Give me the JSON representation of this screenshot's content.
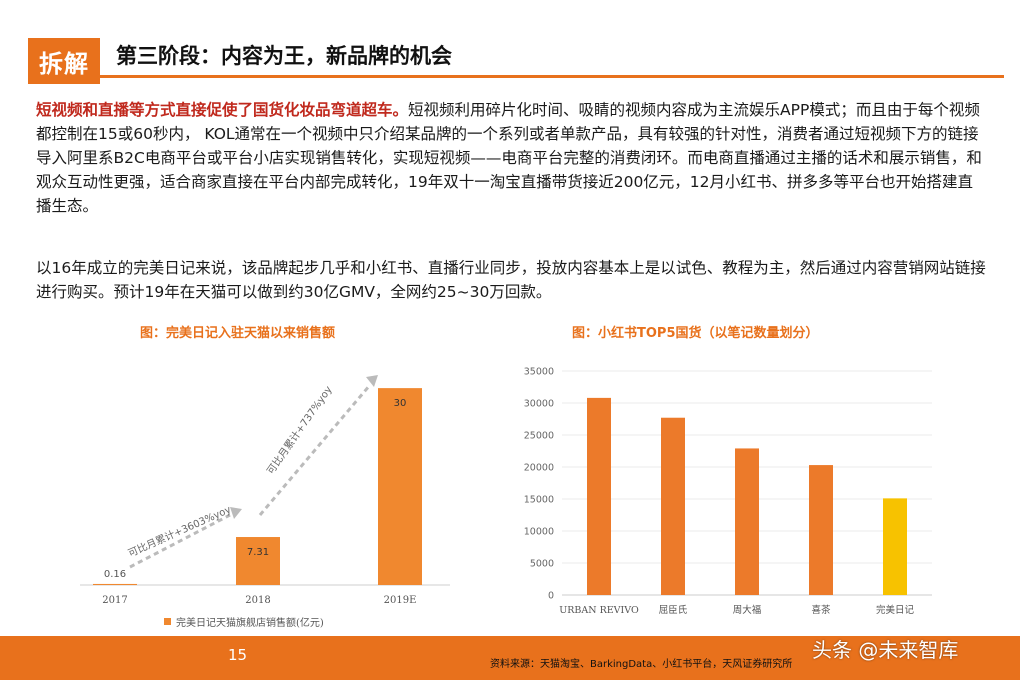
{
  "header": {
    "badge": "拆解",
    "title": "第三阶段：内容为王，新品牌的机会"
  },
  "body": {
    "para1_lead": "短视频和直播等方式直接促使了国货化妆品弯道超车。",
    "para1_text": "短视频利用碎片化时间、吸睛的视频内容成为主流娱乐APP模式；而且由于每个视频都控制在15或60秒内， KOL通常在一个视频中只介绍某品牌的一个系列或者单款产品，具有较强的针对性，消费者通过短视频下方的链接导入阿里系B2C电商平台或平台小店实现销售转化，实现短视频——电商平台完整的消费闭环。而电商直播通过主播的话术和展示销售，和观众互动性更强，适合商家直接在平台内部完成转化，19年双十一淘宝直播带货接近200亿元，12月小红书、拼多多等平台也开始搭建直播生态。",
    "para2_text": "以16年成立的完美日记来说，该品牌起步几乎和小红书、直播行业同步，投放内容基本上是以试色、教程为主，然后通过内容营销网站链接进行购买。预计19年在天猫可以做到约30亿GMV，全网约25~30万回款。"
  },
  "chart_data": [
    {
      "type": "bar",
      "title": "图：完美日记入驻天猫以来销售额",
      "categories": [
        "2017",
        "2018",
        "2019E"
      ],
      "values": [
        0.16,
        7.31,
        30
      ],
      "data_labels": [
        "0.16",
        "7.31",
        "30"
      ],
      "legend": "完美日记天猫旗舰店销售额(亿元)",
      "annotations": [
        "可比月累计+3603%yoy",
        "可比月累计+737%yoy"
      ],
      "ylim": [
        0,
        32
      ],
      "grid": false,
      "bar_color": "#f0882f"
    },
    {
      "type": "bar",
      "title": "图：小红书TOP5国货（以笔记数量划分）",
      "categories": [
        "URBAN REVIVO",
        "屈臣氏",
        "周大福",
        "喜茶",
        "完美日记"
      ],
      "values": [
        30800,
        27700,
        22900,
        20300,
        15100
      ],
      "ylim": [
        0,
        35000
      ],
      "yticks": [
        "0",
        "5000",
        "10000",
        "15000",
        "20000",
        "25000",
        "30000",
        "35000"
      ],
      "grid": true,
      "bar_colors": [
        "#ec7a2a",
        "#ec7a2a",
        "#ec7a2a",
        "#ec7a2a",
        "#f7c200"
      ]
    }
  ],
  "footer": {
    "page_number": "15",
    "source": "资料来源：天猫淘宝、BarkingData、小红书平台，天风证券研究所",
    "watermark": "头条 @未来智库"
  },
  "colors": {
    "accent": "#e8711c",
    "lead_text": "#c0291d"
  }
}
